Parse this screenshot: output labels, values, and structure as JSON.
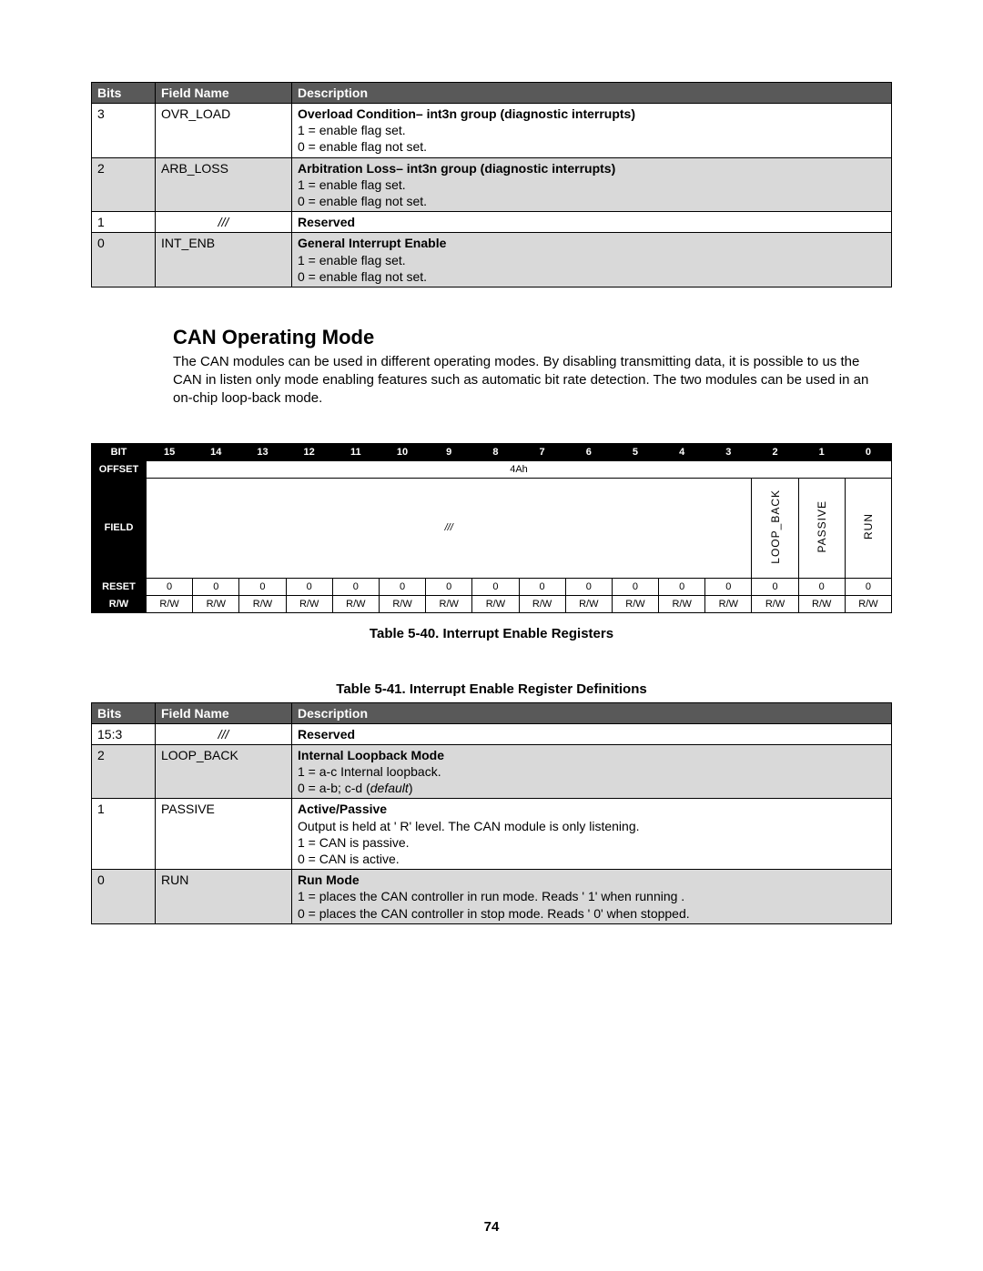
{
  "table1": {
    "headers": [
      "Bits",
      "Field Name",
      "Description"
    ],
    "col_widths": [
      "70px",
      "150px",
      "auto"
    ],
    "rows": [
      {
        "bits": "3",
        "field": "OVR_LOAD",
        "alt": false,
        "desc_bold": "Overload Condition– int3n group (diagnostic interrupts)",
        "lines": [
          "1 = enable flag set.",
          "0 = enable flag not set."
        ]
      },
      {
        "bits": "2",
        "field": "ARB_LOSS",
        "alt": true,
        "desc_bold": "Arbitration Loss– int3n group (diagnostic interrupts)",
        "lines": [
          "1 = enable flag set.",
          "0 = enable flag not set."
        ]
      },
      {
        "bits": "1",
        "field": "///",
        "field_italic": true,
        "alt": false,
        "desc_bold": "Reserved",
        "lines": []
      },
      {
        "bits": "0",
        "field": "INT_ENB",
        "alt": true,
        "desc_bold": "General Interrupt Enable",
        "lines": [
          "1 = enable flag set.",
          "0 = enable flag not set."
        ]
      }
    ]
  },
  "section": {
    "title": "CAN Operating Mode",
    "body": "The CAN modules can be used in different operating modes. By disabling transmitting data, it is possible to us the CAN in listen only mode enabling features such as automatic bit rate detection. The two modules can be used in an on-chip loop-back mode."
  },
  "bitmap": {
    "bit_label": "BIT",
    "bits": [
      "15",
      "14",
      "13",
      "12",
      "11",
      "10",
      "9",
      "8",
      "7",
      "6",
      "5",
      "4",
      "3",
      "2",
      "1",
      "0"
    ],
    "offset_label": "OFFSET",
    "offset_value": "4Ah",
    "field_label": "FIELD",
    "field_reserved": "///",
    "fields": [
      "LOOP_BACK",
      "PASSIVE",
      "RUN"
    ],
    "reset_label": "RESET",
    "reset": [
      "0",
      "0",
      "0",
      "0",
      "0",
      "0",
      "0",
      "0",
      "0",
      "0",
      "0",
      "0",
      "0",
      "0",
      "0",
      "0"
    ],
    "rw_label": "R/W",
    "rw": [
      "R/W",
      "R/W",
      "R/W",
      "R/W",
      "R/W",
      "R/W",
      "R/W",
      "R/W",
      "R/W",
      "R/W",
      "R/W",
      "R/W",
      "R/W",
      "R/W",
      "R/W",
      "R/W"
    ]
  },
  "caption1": "Table 5-40. Interrupt Enable Registers",
  "caption2": "Table 5-41. Interrupt Enable Register Definitions",
  "table2": {
    "headers": [
      "Bits",
      "Field Name",
      "Description"
    ],
    "col_widths": [
      "70px",
      "150px",
      "auto"
    ],
    "rows": [
      {
        "bits": "15:3",
        "field": "///",
        "field_italic": true,
        "alt": false,
        "desc_bold": "Reserved",
        "lines": []
      },
      {
        "bits": "2",
        "field": "LOOP_BACK",
        "alt": true,
        "desc_bold": "Internal Loopback Mode",
        "lines": [
          "1 = a-c Internal loopback.",
          "0 = a-b; c-d (<i>default</i>)"
        ]
      },
      {
        "bits": "1",
        "field": "PASSIVE",
        "alt": false,
        "desc_bold": "Active/Passive",
        "lines": [
          "Output is held at ' R' level. The CAN module is only listening.",
          "1 = CAN is passive.",
          "0 = CAN is active."
        ]
      },
      {
        "bits": "0",
        "field": "RUN",
        "alt": true,
        "desc_bold": "Run Mode",
        "lines": [
          "1 = places the CAN controller in run mode.  Reads ' 1' when running .",
          "0 = places the CAN controller in stop mode. Reads ' 0' when stopped."
        ]
      }
    ]
  },
  "page_number": "74"
}
